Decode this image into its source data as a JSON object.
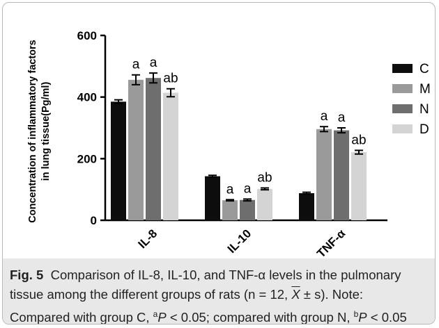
{
  "chart_data": {
    "type": "bar",
    "ylabel_line1": "Concentration of inflammatory factors",
    "ylabel_line2": "in lung tissue(Pg/ml)",
    "xlabel": "",
    "ylim": [
      0,
      600
    ],
    "yticks": [
      0,
      200,
      400,
      600
    ],
    "categories": [
      "IL-8",
      "IL-10",
      "TNF-α"
    ],
    "legend_position": "right",
    "series": [
      {
        "name": "C",
        "color": "#0d0d0d",
        "values": [
          385,
          143,
          88
        ],
        "errors": [
          6,
          3,
          3
        ],
        "labels": [
          "",
          "",
          ""
        ]
      },
      {
        "name": "M",
        "color": "#9a9a9a",
        "values": [
          456,
          65,
          296
        ],
        "errors": [
          16,
          2,
          8
        ],
        "labels": [
          "a",
          "a",
          "a"
        ]
      },
      {
        "name": "N",
        "color": "#6e6e6e",
        "values": [
          462,
          66,
          292
        ],
        "errors": [
          16,
          3,
          8
        ],
        "labels": [
          "a",
          "a",
          "a"
        ]
      },
      {
        "name": "D",
        "color": "#d4d4d4",
        "values": [
          414,
          102,
          221
        ],
        "errors": [
          13,
          3,
          6
        ],
        "labels": [
          "ab",
          "ab",
          "ab"
        ]
      }
    ]
  },
  "caption": {
    "fig_label": "Fig. 5",
    "line1": "Comparison of IL-8, IL-10, and TNF-α levels in the pulmonary",
    "line2_a": "tissue among the different groups of rats (n = 12, ",
    "line2_xbar": "X",
    "line2_b": " ± s). Note:",
    "line3_a": "Compared with group C, ",
    "sup_a": "a",
    "p1": "P",
    "line3_b": " < 0.05; compared with group N, ",
    "sup_b": "b",
    "p2": "P",
    "line3_c": " < 0.05"
  }
}
